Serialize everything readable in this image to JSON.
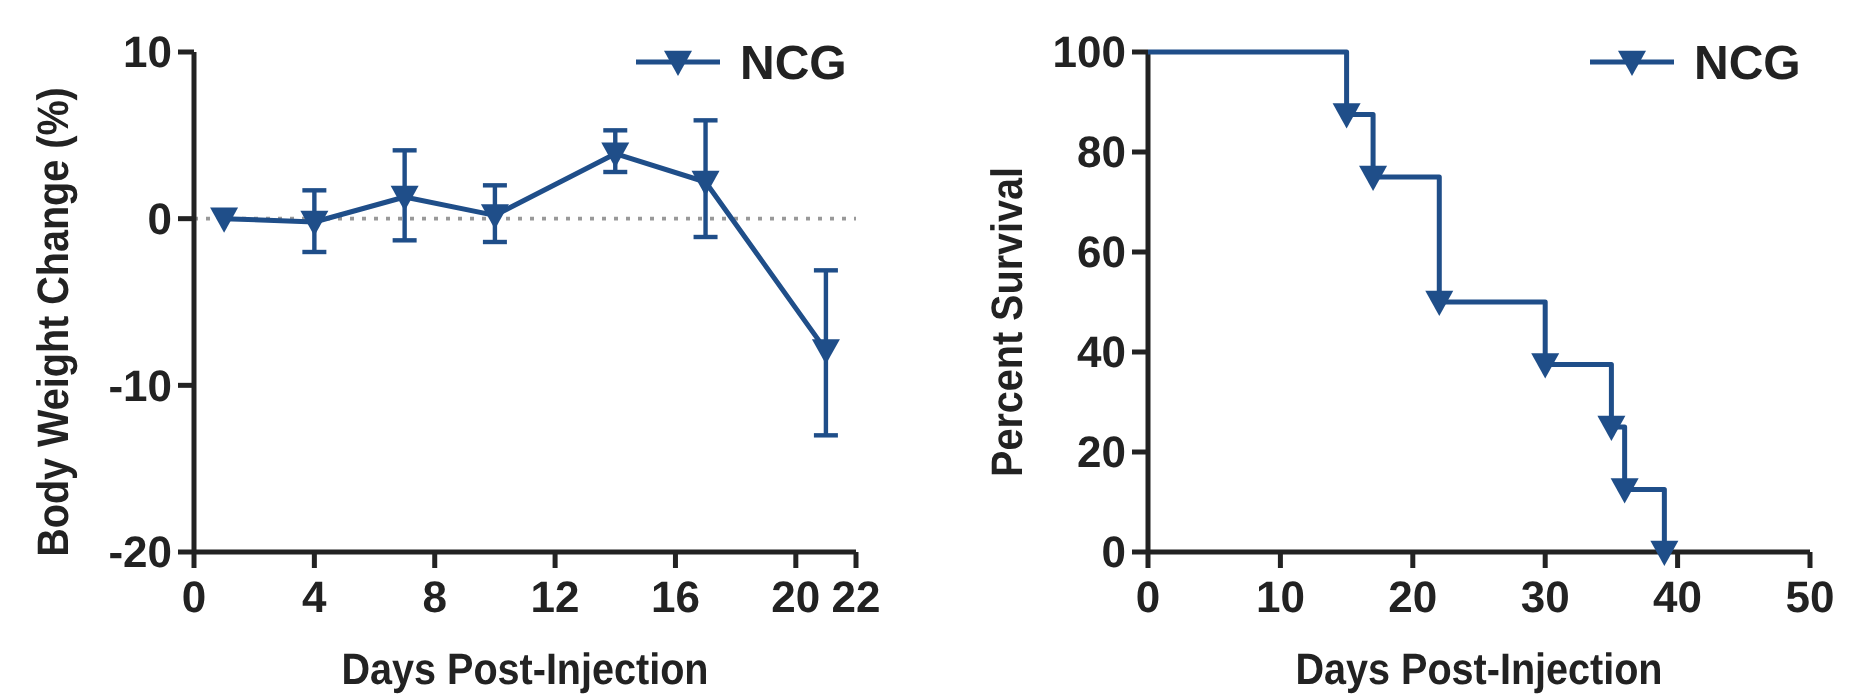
{
  "chart_data": [
    {
      "type": "line",
      "xlabel": "Days Post-Injection",
      "ylabel": "Body Weight Change (%)",
      "x": [
        1,
        4,
        7,
        10,
        14,
        17,
        21
      ],
      "series": [
        {
          "name": "NCG",
          "color": "#1f4e89",
          "values": [
            0,
            -0.2,
            1.3,
            0.2,
            3.9,
            2.2,
            -7.9
          ],
          "errors": [
            null,
            [
              -2,
              1.7
            ],
            [
              -1.3,
              4.1
            ],
            [
              -1.4,
              2
            ],
            [
              2.8,
              5.3
            ],
            [
              -1.1,
              5.9
            ],
            [
              -13,
              -3.1
            ]
          ]
        }
      ],
      "xlim": [
        0,
        22
      ],
      "xticks": [
        0,
        4,
        8,
        12,
        16,
        20,
        22
      ],
      "ylim": [
        -20,
        10
      ],
      "yticks": [
        -20,
        -10,
        0,
        10
      ],
      "ref_lines": [
        {
          "axis": "y",
          "value": 0,
          "color": "#999999",
          "line_style": "dotted"
        }
      ],
      "marker": "triangle",
      "legend": "top right",
      "grid": false
    },
    {
      "type": "step",
      "xlabel": "Days Post-Injection",
      "ylabel": "Percent Survival",
      "x": [
        0,
        15,
        17,
        22,
        30,
        35,
        36,
        39
      ],
      "series": [
        {
          "name": "NCG",
          "color": "#1f4e89",
          "values": [
            100,
            87.5,
            75,
            50,
            37.5,
            25,
            12.5,
            0
          ]
        }
      ],
      "xlim": [
        0,
        50
      ],
      "xticks": [
        0,
        10,
        20,
        30,
        40,
        50
      ],
      "ylim": [
        0,
        100
      ],
      "yticks": [
        0,
        20,
        40,
        60,
        80,
        100
      ],
      "marker": "triangle",
      "legend": "top right",
      "grid": false
    }
  ]
}
